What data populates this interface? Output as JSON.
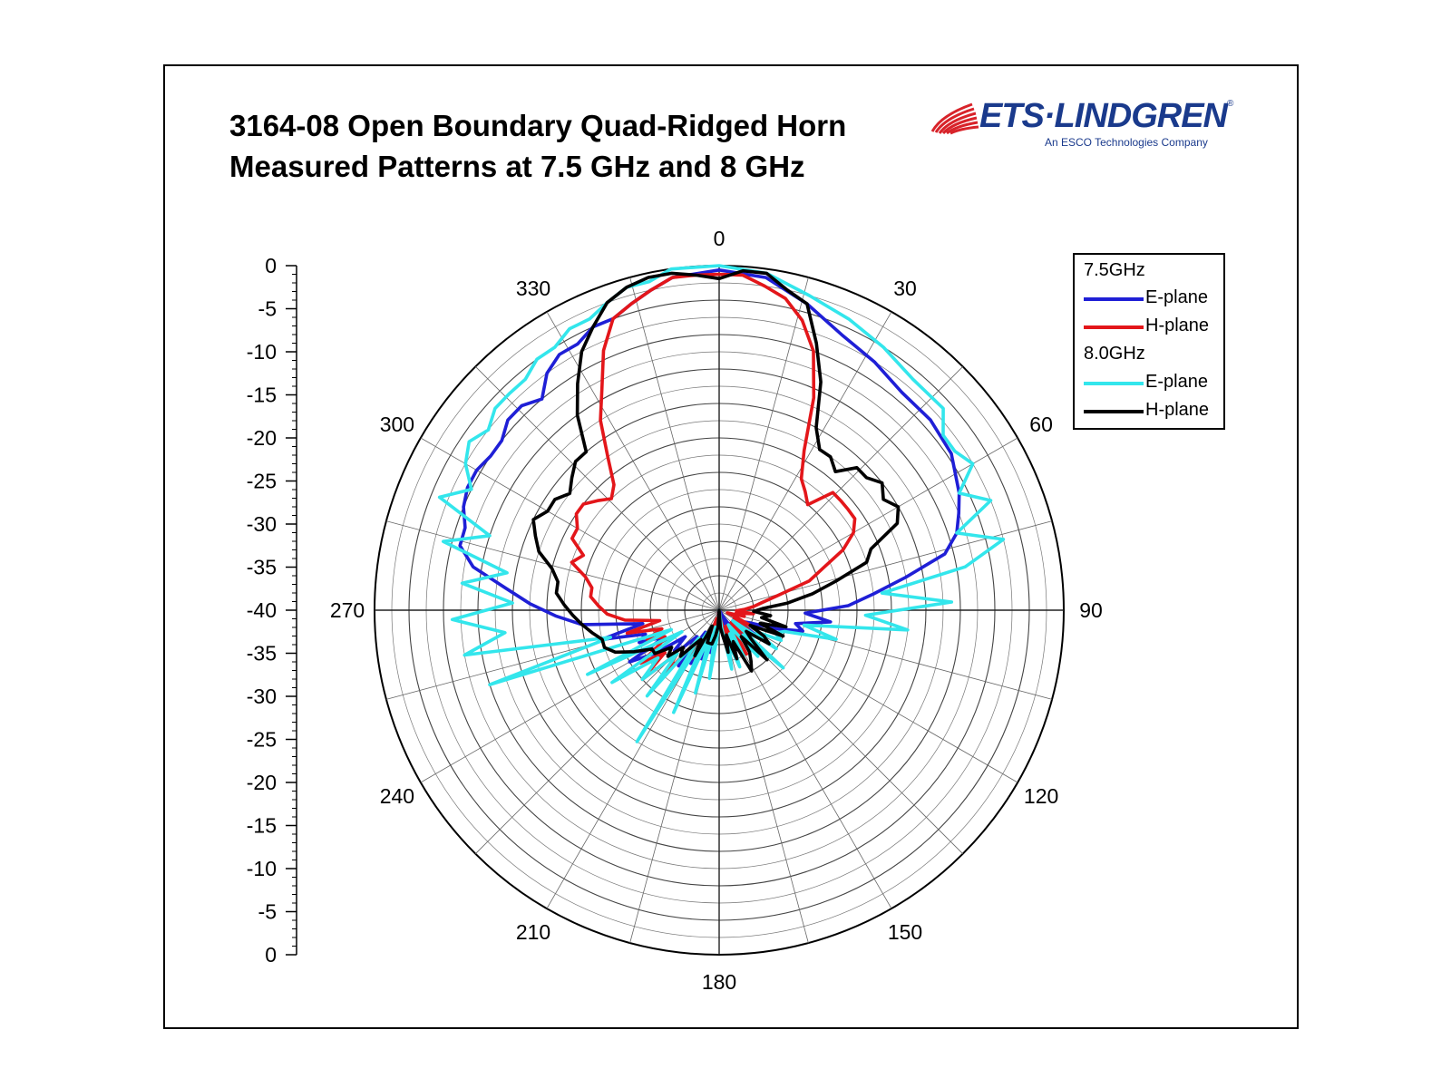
{
  "title": {
    "line1": "3164-08 Open Boundary Quad-Ridged Horn",
    "line2": "Measured Patterns at 7.5 GHz and 8 GHz"
  },
  "logo": {
    "text": "ETS·LINDGREN",
    "registered": "®",
    "tagline": "An ESCO Technologies Company"
  },
  "legend": {
    "group1": "7.5GHz",
    "group2": "8.0GHz",
    "items": [
      {
        "label": "E-plane",
        "color": "#1f1fd6"
      },
      {
        "label": "H-plane",
        "color": "#e3161a"
      },
      {
        "label": "E-plane",
        "color": "#33e6ec"
      },
      {
        "label": "H-plane",
        "color": "#000000"
      }
    ]
  },
  "chart_data": {
    "type": "polar",
    "angle_ticks": [
      "0",
      "30",
      "60",
      "90",
      "120",
      "150",
      "180",
      "210",
      "240",
      "270",
      "300",
      "330"
    ],
    "radial_axis": {
      "ticks": [
        "0",
        "-5",
        "-10",
        "-15",
        "-20",
        "-25",
        "-30",
        "-35",
        "-40",
        "-35",
        "-30",
        "-25",
        "-20",
        "-15",
        "-10",
        "-5",
        "0"
      ],
      "min": -40,
      "max": 0,
      "step": 5,
      "minor_rings": 20
    },
    "grid": true,
    "legend_position": "top-right",
    "series": [
      {
        "name": "E-plane",
        "group": "7.5GHz",
        "color": "#1f1fd6",
        "angles": [
          0,
          8,
          16,
          24,
          32,
          40,
          48,
          56,
          64,
          68,
          72,
          76,
          80,
          84,
          88,
          92,
          96,
          100,
          104,
          108,
          112,
          116,
          120,
          124,
          128,
          132,
          136,
          140,
          144,
          148,
          152,
          156,
          160,
          164,
          168,
          172,
          176,
          180,
          184,
          188,
          192,
          196,
          200,
          204,
          208,
          212,
          216,
          220,
          224,
          228,
          232,
          236,
          240,
          244,
          248,
          252,
          256,
          260,
          264,
          268,
          272,
          276,
          280,
          284,
          288,
          292,
          296,
          300,
          304,
          308,
          312,
          316,
          320,
          324,
          328,
          332,
          336,
          340,
          344,
          348,
          352
        ],
        "values": [
          -0.5,
          -1,
          -3,
          -5,
          -6,
          -7,
          -7,
          -7.5,
          -9,
          -10,
          -11,
          -13,
          -18,
          -22,
          -25,
          -30,
          -27,
          -31,
          -30,
          -33,
          -36,
          -37,
          -38,
          -35,
          -38,
          -36,
          -34,
          -38,
          -36,
          -39,
          -40,
          -35,
          -38,
          -35,
          -37,
          -39,
          -40,
          -40,
          -40,
          -38,
          -35,
          -37,
          -34,
          -36,
          -33,
          -37,
          -32,
          -36,
          -34,
          -33,
          -35,
          -31,
          -28,
          -33,
          -30,
          -31,
          -26,
          -31,
          -24,
          -21,
          -18,
          -15,
          -11,
          -9,
          -9,
          -8,
          -7.5,
          -7.5,
          -8,
          -8,
          -7,
          -7,
          -8,
          -6,
          -5,
          -5,
          -4,
          -4,
          -3,
          -2,
          -1
        ]
      },
      {
        "name": "H-plane",
        "group": "7.5GHz",
        "color": "#e3161a",
        "angles": [
          0,
          4,
          8,
          12,
          16,
          20,
          24,
          28,
          32,
          36,
          40,
          44,
          48,
          52,
          56,
          60,
          64,
          68,
          72,
          76,
          80,
          84,
          88,
          92,
          96,
          100,
          104,
          108,
          112,
          116,
          120,
          124,
          128,
          132,
          136,
          140,
          144,
          148,
          152,
          156,
          160,
          164,
          168,
          172,
          176,
          180,
          184,
          188,
          192,
          196,
          200,
          204,
          208,
          212,
          216,
          220,
          224,
          228,
          232,
          236,
          240,
          244,
          248,
          252,
          256,
          260,
          264,
          268,
          272,
          276,
          280,
          284,
          288,
          292,
          296,
          300,
          304,
          308,
          312,
          316,
          320,
          324,
          328,
          332,
          336,
          340,
          344,
          348,
          352,
          356
        ],
        "values": [
          -1,
          -1,
          -2,
          -3,
          -5,
          -8,
          -13,
          -19,
          -22,
          -23,
          -24,
          -21,
          -21,
          -21,
          -21,
          -22,
          -24,
          -27,
          -29,
          -33,
          -35,
          -36,
          -37,
          -38,
          -36,
          -38,
          -37,
          -39,
          -38,
          -36,
          -38,
          -36,
          -37,
          -35,
          -38,
          -36,
          -37,
          -34,
          -36,
          -38,
          -35,
          -37,
          -38,
          -39,
          -40,
          -40,
          -40,
          -38,
          -37,
          -39,
          -36,
          -37,
          -34,
          -33,
          -36,
          -30,
          -33,
          -28,
          -32,
          -29,
          -32,
          -33,
          -31,
          -33,
          -29,
          -33,
          -29,
          -27,
          -26,
          -25,
          -25,
          -24,
          -22,
          -23,
          -21,
          -21,
          -20,
          -20,
          -21,
          -22,
          -21,
          -18,
          -14,
          -11,
          -7,
          -4,
          -3,
          -2,
          -1,
          -1
        ]
      },
      {
        "name": "E-plane",
        "group": "8.0GHz",
        "color": "#33e6ec",
        "angles": [
          0,
          8,
          16,
          24,
          32,
          40,
          48,
          52,
          56,
          60,
          64,
          68,
          72,
          76,
          80,
          84,
          88,
          92,
          96,
          100,
          104,
          108,
          112,
          116,
          120,
          124,
          128,
          132,
          136,
          140,
          144,
          148,
          152,
          156,
          160,
          164,
          168,
          172,
          176,
          180,
          184,
          188,
          192,
          196,
          200,
          204,
          208,
          212,
          216,
          220,
          224,
          228,
          232,
          236,
          240,
          244,
          248,
          252,
          256,
          260,
          264,
          268,
          272,
          276,
          280,
          284,
          288,
          292,
          296,
          300,
          304,
          308,
          312,
          316,
          320,
          324,
          328,
          332,
          336,
          340,
          344,
          348,
          352
        ],
        "values": [
          0,
          -0.5,
          -2,
          -3,
          -4,
          -5,
          -5,
          -7,
          -7,
          -6,
          -9,
          -6,
          -11,
          -6,
          -11,
          -21,
          -13,
          -23,
          -18,
          -30,
          -26,
          -32,
          -33,
          -32,
          -35,
          -32,
          -38,
          -30,
          -36,
          -33,
          -37,
          -38,
          -34,
          -37,
          -33,
          -36,
          -33,
          -38,
          -40,
          -40,
          -37,
          -32,
          -38,
          -30,
          -37,
          -27,
          -37,
          -22,
          -36,
          -27,
          -33,
          -28,
          -31,
          -25,
          -35,
          -23,
          -34,
          -12,
          -27,
          -10,
          -15,
          -9,
          -16,
          -10,
          -15,
          -7,
          -12,
          -5,
          -8,
          -6,
          -5,
          -6,
          -5,
          -5,
          -5,
          -4,
          -4,
          -3,
          -3,
          -2,
          -1,
          -1,
          0
        ]
      },
      {
        "name": "H-plane",
        "group": "8.0GHz",
        "color": "#000000",
        "angles": [
          0,
          4,
          8,
          12,
          16,
          20,
          24,
          28,
          32,
          36,
          40,
          44,
          48,
          52,
          56,
          60,
          64,
          68,
          72,
          76,
          80,
          84,
          88,
          92,
          96,
          100,
          104,
          108,
          112,
          116,
          120,
          124,
          128,
          132,
          136,
          140,
          144,
          148,
          152,
          156,
          160,
          164,
          168,
          172,
          176,
          180,
          184,
          188,
          192,
          196,
          200,
          204,
          208,
          212,
          216,
          220,
          224,
          228,
          232,
          236,
          240,
          244,
          248,
          252,
          256,
          260,
          264,
          268,
          272,
          276,
          280,
          284,
          288,
          292,
          296,
          300,
          304,
          308,
          312,
          316,
          320,
          324,
          328,
          332,
          336,
          340,
          344,
          348,
          352,
          356
        ],
        "values": [
          -1.5,
          -0.5,
          -0.5,
          -2,
          -3,
          -7,
          -11,
          -16,
          -18,
          -18,
          -19,
          -17,
          -17,
          -16,
          -17,
          -16,
          -17,
          -21,
          -22,
          -26,
          -29,
          -32,
          -35,
          -36,
          -34,
          -35,
          -32,
          -35,
          -32,
          -36,
          -34,
          -33,
          -36,
          -35,
          -32,
          -36,
          -34,
          -33,
          -32,
          -36,
          -34,
          -37,
          -35,
          -37,
          -38,
          -40,
          -38,
          -37,
          -36,
          -36,
          -36,
          -38,
          -34,
          -36,
          -35,
          -33,
          -34,
          -32,
          -33,
          -31,
          -31,
          -29,
          -27,
          -26,
          -26,
          -25,
          -24,
          -23,
          -22,
          -21,
          -21,
          -20,
          -18,
          -17,
          -16,
          -17,
          -17,
          -18,
          -17,
          -16,
          -16,
          -12,
          -9,
          -6,
          -4,
          -2,
          -1,
          -0.5,
          -0.5,
          -1
        ]
      }
    ]
  }
}
